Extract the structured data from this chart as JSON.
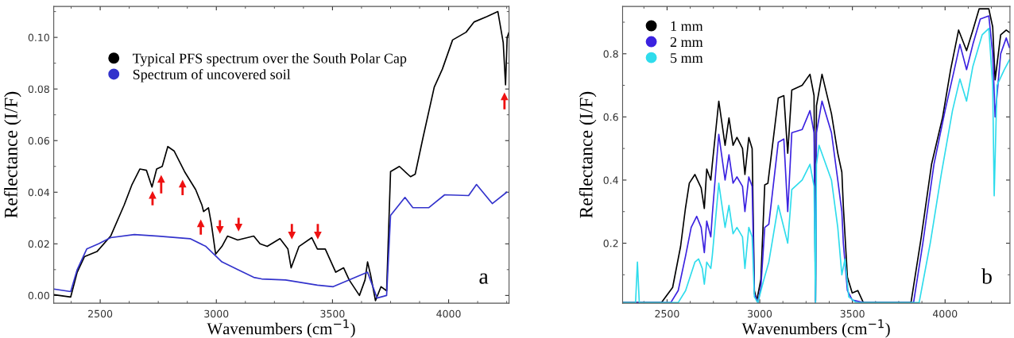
{
  "chart_data": [
    {
      "type": "line",
      "xlabel": "Wavenumbers (cm$^{−1}$)",
      "ylabel": "Reflectance (I/F)",
      "legend": "top left",
      "grid": false,
      "marker": "none",
      "line_style": "solid",
      "xlim": [
        2300,
        4260
      ],
      "ylim": [
        -0.003,
        0.112
      ],
      "xticks": [
        2500,
        3000,
        3500,
        4000
      ],
      "yticks": [
        {
          "value": 0,
          "label": "0.00"
        },
        {
          "value": 0.02,
          "label": "0.02"
        },
        {
          "value": 0.04,
          "label": "0.04"
        },
        {
          "value": 0.06,
          "label": "0.06"
        },
        {
          "value": 0.08,
          "label": "0.08"
        },
        {
          "value": 0.1,
          "label": "0.10"
        }
      ],
      "annotations": [
        "a"
      ],
      "series": [
        {
          "name": "Typical PFS spectrum over the South Polar Cap",
          "color": "#000000",
          "x": [
            2300,
            2373,
            2401,
            2432,
            2486,
            2545,
            2603,
            2637,
            2671,
            2699,
            2723,
            2743,
            2767,
            2791,
            2818,
            2863,
            2911,
            2938,
            2945,
            2966,
            2979,
            2997,
            3024,
            3048,
            3092,
            3161,
            3188,
            3219,
            3274,
            3308,
            3322,
            3356,
            3411,
            3435,
            3469,
            3514,
            3548,
            3572,
            3616,
            3640,
            3651,
            3664,
            3685,
            3709,
            3733,
            3750,
            3788,
            3836,
            3856,
            3890,
            3938,
            3973,
            4017,
            4075,
            4110,
            4164,
            4212,
            4235,
            4245,
            4252,
            4260
          ],
          "values": [
            0.0003,
            -0.0006,
            0.009,
            0.015,
            0.017,
            0.023,
            0.035,
            0.043,
            0.049,
            0.0485,
            0.042,
            0.049,
            0.05,
            0.0577,
            0.056,
            0.048,
            0.041,
            0.035,
            0.0325,
            0.034,
            0.0275,
            0.016,
            0.019,
            0.023,
            0.0215,
            0.023,
            0.02,
            0.019,
            0.022,
            0.018,
            0.0107,
            0.019,
            0.0224,
            0.018,
            0.018,
            0.009,
            0.0107,
            0.006,
            0.0,
            0.006,
            0.013,
            0.008,
            -0.002,
            0.0034,
            0.0018,
            0.048,
            0.05,
            0.046,
            0.047,
            0.0613,
            0.0807,
            0.0877,
            0.099,
            0.102,
            0.106,
            0.108,
            0.11,
            0.098,
            0.0816,
            0.1,
            0.102
          ]
        },
        {
          "name": "Spectrum of uncovered soil",
          "color": "#3333cc",
          "x": [
            2300,
            2373,
            2401,
            2442,
            2493,
            2545,
            2647,
            2750,
            2887,
            2955,
            3024,
            3092,
            3161,
            3195,
            3298,
            3435,
            3503,
            3572,
            3651,
            3692,
            3733,
            3750,
            3812,
            3846,
            3914,
            3983,
            4086,
            4120,
            4188,
            4250
          ],
          "values": [
            0.0025,
            0.0015,
            0.01,
            0.018,
            0.02,
            0.0224,
            0.0236,
            0.023,
            0.022,
            0.019,
            0.013,
            0.01,
            0.007,
            0.0064,
            0.006,
            0.004,
            0.0034,
            0.006,
            0.009,
            -0.001,
            0.0,
            0.031,
            0.038,
            0.034,
            0.034,
            0.039,
            0.0387,
            0.043,
            0.0356,
            0.04
          ]
        }
      ]
    },
    {
      "type": "line",
      "xlabel": "Wavenumbers (cm$^{−1}$)",
      "ylabel": "Reflectance (I/F)",
      "legend": "top left",
      "grid": false,
      "marker": "none",
      "line_style": "solid",
      "xlim": [
        2260,
        4350
      ],
      "ylim": [
        0.01,
        0.95
      ],
      "xticks": [
        2500,
        3000,
        3500,
        4000
      ],
      "yticks": [
        0.2,
        0.4,
        0.6,
        0.8
      ],
      "annotations": [
        "b"
      ],
      "series": [
        {
          "name": "1 mm",
          "color": "#000000",
          "x": [
            2260,
            2470,
            2530,
            2573,
            2599,
            2620,
            2650,
            2684,
            2701,
            2714,
            2736,
            2744,
            2779,
            2813,
            2834,
            2856,
            2877,
            2907,
            2920,
            2941,
            2959,
            2971,
            2984,
            3006,
            3027,
            3044,
            3100,
            3130,
            3151,
            3173,
            3229,
            3271,
            3293,
            3301,
            3306,
            3336,
            3387,
            3421,
            3443,
            3451,
            3473,
            3499,
            3529,
            3559,
            3816,
            3871,
            3927,
            3987,
            4030,
            4073,
            4116,
            4150,
            4184,
            4236,
            4257,
            4270,
            4300,
            4330,
            4347
          ],
          "values": [
            0.012,
            0.012,
            0.06,
            0.19,
            0.31,
            0.39,
            0.4175,
            0.375,
            0.31,
            0.435,
            0.4,
            0.45,
            0.65,
            0.51,
            0.597,
            0.51,
            0.535,
            0.5,
            0.4175,
            0.535,
            0.5,
            0.05,
            0.018,
            0.085,
            0.385,
            0.39,
            0.66,
            0.6675,
            0.485,
            0.685,
            0.7,
            0.735,
            0.6675,
            0.018,
            0.635,
            0.735,
            0.61,
            0.485,
            0.425,
            0.3175,
            0.0925,
            0.0425,
            0.05,
            0.012,
            0.012,
            0.2175,
            0.45,
            0.6,
            0.75,
            0.875,
            0.81,
            0.875,
            0.9425,
            0.9425,
            0.885,
            0.7175,
            0.86,
            0.875,
            0.8675
          ]
        },
        {
          "name": "2 mm",
          "color": "#3b22e0",
          "x": [
            2260,
            2520,
            2560,
            2600,
            2630,
            2660,
            2684,
            2701,
            2714,
            2736,
            2744,
            2779,
            2813,
            2834,
            2856,
            2877,
            2907,
            2920,
            2941,
            2959,
            2971,
            2990,
            3006,
            3027,
            3049,
            3100,
            3130,
            3151,
            3173,
            3229,
            3271,
            3293,
            3301,
            3306,
            3336,
            3387,
            3421,
            3443,
            3451,
            3473,
            3499,
            3559,
            3830,
            3880,
            3940,
            4000,
            4050,
            4080,
            4116,
            4150,
            4190,
            4236,
            4257,
            4270,
            4300,
            4330,
            4347
          ],
          "values": [
            0.012,
            0.012,
            0.05,
            0.16,
            0.25,
            0.285,
            0.25,
            0.17,
            0.27,
            0.22,
            0.29,
            0.545,
            0.4,
            0.48,
            0.39,
            0.41,
            0.38,
            0.3,
            0.41,
            0.38,
            0.04,
            0.012,
            0.06,
            0.25,
            0.26,
            0.52,
            0.53,
            0.3,
            0.55,
            0.56,
            0.62,
            0.55,
            0.012,
            0.55,
            0.65,
            0.55,
            0.4,
            0.3,
            0.2,
            0.05,
            0.02,
            0.012,
            0.012,
            0.2,
            0.45,
            0.62,
            0.75,
            0.83,
            0.75,
            0.83,
            0.91,
            0.92,
            0.8,
            0.6,
            0.8,
            0.85,
            0.82
          ]
        },
        {
          "name": "5 mm",
          "color": "#2fdcec",
          "x": [
            2260,
            2330,
            2340,
            2350,
            2560,
            2600,
            2650,
            2670,
            2690,
            2701,
            2714,
            2736,
            2744,
            2779,
            2813,
            2834,
            2856,
            2877,
            2907,
            2920,
            2941,
            2959,
            2971,
            2990,
            3020,
            3049,
            3100,
            3151,
            3173,
            3229,
            3271,
            3293,
            3301,
            3306,
            3320,
            3387,
            3421,
            3443,
            3460,
            3480,
            3520,
            3860,
            3920,
            3980,
            4040,
            4080,
            4116,
            4150,
            4200,
            4236,
            4257,
            4265,
            4280,
            4320,
            4347
          ],
          "values": [
            0.012,
            0.012,
            0.14,
            0.012,
            0.012,
            0.05,
            0.14,
            0.15,
            0.12,
            0.07,
            0.14,
            0.12,
            0.16,
            0.39,
            0.25,
            0.32,
            0.23,
            0.25,
            0.22,
            0.12,
            0.25,
            0.22,
            0.03,
            0.012,
            0.08,
            0.14,
            0.32,
            0.2,
            0.37,
            0.4,
            0.45,
            0.38,
            0.012,
            0.45,
            0.51,
            0.4,
            0.25,
            0.1,
            0.15,
            0.03,
            0.012,
            0.012,
            0.2,
            0.42,
            0.62,
            0.72,
            0.65,
            0.76,
            0.86,
            0.88,
            0.7,
            0.35,
            0.7,
            0.75,
            0.78
          ]
        }
      ]
    }
  ]
}
